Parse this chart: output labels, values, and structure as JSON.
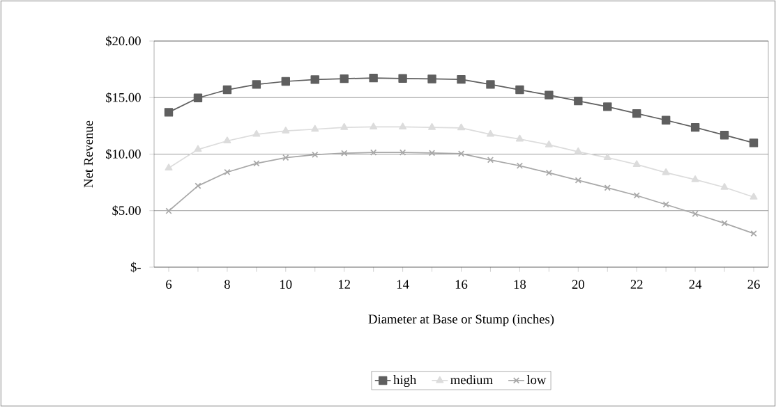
{
  "chart_data": {
    "type": "line",
    "xlabel": "Diameter at Base or Stump (inches)",
    "ylabel": "Net Revenue",
    "x": [
      6,
      7,
      8,
      9,
      10,
      11,
      12,
      13,
      14,
      15,
      16,
      17,
      18,
      19,
      20,
      21,
      22,
      23,
      24,
      25,
      26
    ],
    "series": [
      {
        "name": "high",
        "color": "#5f5f5f",
        "marker": "square",
        "values": [
          13.7,
          14.97,
          15.69,
          16.16,
          16.43,
          16.59,
          16.67,
          16.73,
          16.69,
          16.65,
          16.61,
          16.16,
          15.69,
          15.22,
          14.7,
          14.19,
          13.59,
          13.0,
          12.36,
          11.68,
          10.99
        ]
      },
      {
        "name": "medium",
        "color": "#dcdcdc",
        "marker": "triangle",
        "values": [
          8.77,
          10.41,
          11.17,
          11.75,
          12.05,
          12.2,
          12.36,
          12.4,
          12.4,
          12.36,
          12.32,
          11.75,
          11.33,
          10.82,
          10.21,
          9.69,
          9.08,
          8.36,
          7.74,
          7.06,
          6.2
        ]
      },
      {
        "name": "low",
        "color": "#a8a8a8",
        "marker": "cross",
        "values": [
          4.97,
          7.19,
          8.4,
          9.18,
          9.69,
          9.94,
          10.08,
          10.14,
          10.14,
          10.1,
          10.04,
          9.49,
          8.97,
          8.34,
          7.68,
          7.02,
          6.34,
          5.54,
          4.72,
          3.88,
          2.98
        ]
      }
    ],
    "xlim": [
      5.5,
      26.5
    ],
    "ylim": [
      0,
      20
    ],
    "xticks": [
      6,
      {
        "value": 7,
        "label": null
      },
      8,
      {
        "value": 9,
        "label": null
      },
      10,
      {
        "value": 11,
        "label": null
      },
      12,
      {
        "value": 13,
        "label": null
      },
      14,
      {
        "value": 15,
        "label": null
      },
      16,
      {
        "value": 17,
        "label": null
      },
      18,
      {
        "value": 19,
        "label": null
      },
      20,
      {
        "value": 21,
        "label": null
      },
      22,
      {
        "value": 23,
        "label": null
      },
      24,
      {
        "value": 25,
        "label": null
      },
      26
    ],
    "yticks": [
      {
        "value": 0,
        "label": "$-"
      },
      {
        "value": 5,
        "label": "$5.00"
      },
      {
        "value": 10,
        "label": "$10.00"
      },
      {
        "value": 15,
        "label": "$15.00"
      },
      {
        "value": 20,
        "label": "$20.00"
      }
    ],
    "grid": "y",
    "legend": "bottom",
    "line_style": "solid"
  }
}
